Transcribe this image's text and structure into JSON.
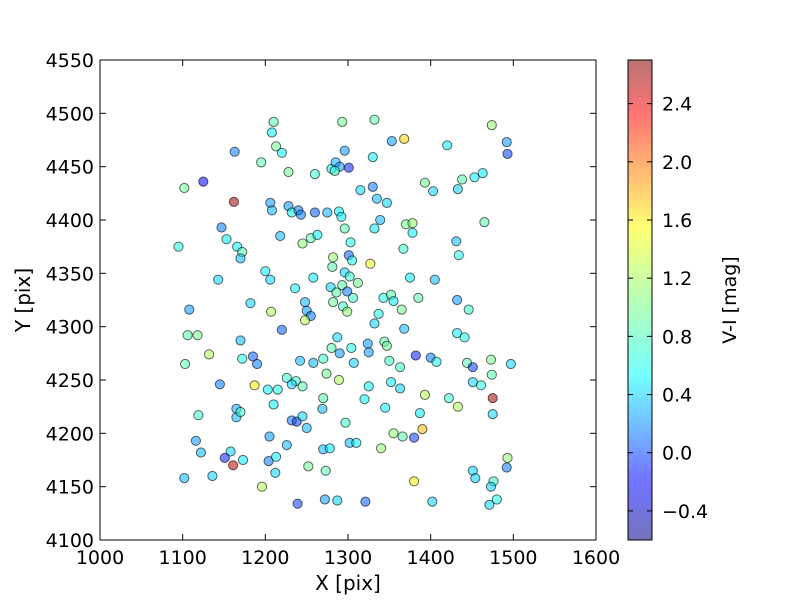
{
  "chart_data": {
    "type": "scatter",
    "xlabel": "X [pix]",
    "ylabel": "Y [pix]",
    "xlim": [
      1000,
      1600
    ],
    "ylim": [
      4100,
      4550
    ],
    "xticks": [
      "1000",
      "1100",
      "1200",
      "1300",
      "1400",
      "1500",
      "1600"
    ],
    "yticks": [
      "4100",
      "4150",
      "4200",
      "4250",
      "4300",
      "4350",
      "4400",
      "4450",
      "4500",
      "4550"
    ],
    "grid": false,
    "colorbar": {
      "label": "V-I [mag]",
      "range": [
        -0.6,
        2.7
      ],
      "ticks": [
        "−0.4",
        "0.0",
        "0.4",
        "0.8",
        "1.2",
        "1.6",
        "2.0",
        "2.4"
      ],
      "tick_values": [
        -0.4,
        0.0,
        0.4,
        0.8,
        1.2,
        1.6,
        2.0,
        2.4
      ],
      "colormap": "jet",
      "alpha": 0.55
    },
    "points": [
      {
        "x": 1210,
        "y": 4492,
        "c": 0.9
      },
      {
        "x": 1293,
        "y": 4492,
        "c": 1.0
      },
      {
        "x": 1332,
        "y": 4494,
        "c": 0.9
      },
      {
        "x": 1474,
        "y": 4489,
        "c": 1.1
      },
      {
        "x": 1208,
        "y": 4482,
        "c": 0.6
      },
      {
        "x": 1353,
        "y": 4474,
        "c": 0.3
      },
      {
        "x": 1368,
        "y": 4476,
        "c": 1.6
      },
      {
        "x": 1420,
        "y": 4470,
        "c": 0.6
      },
      {
        "x": 1492,
        "y": 4473,
        "c": 0.3
      },
      {
        "x": 1163,
        "y": 4464,
        "c": 0.2
      },
      {
        "x": 1213,
        "y": 4469,
        "c": 1.0
      },
      {
        "x": 1220,
        "y": 4463,
        "c": 0.6
      },
      {
        "x": 1296,
        "y": 4465,
        "c": 0.3
      },
      {
        "x": 1330,
        "y": 4459,
        "c": 0.6
      },
      {
        "x": 1493,
        "y": 4462,
        "c": 0.0
      },
      {
        "x": 1195,
        "y": 4454,
        "c": 0.9
      },
      {
        "x": 1228,
        "y": 4445,
        "c": 1.0
      },
      {
        "x": 1260,
        "y": 4443,
        "c": 0.8
      },
      {
        "x": 1280,
        "y": 4448,
        "c": 0.6
      },
      {
        "x": 1285,
        "y": 4454,
        "c": 0.4
      },
      {
        "x": 1290,
        "y": 4450,
        "c": 0.3
      },
      {
        "x": 1301,
        "y": 4449,
        "c": -0.1
      },
      {
        "x": 1284,
        "y": 4446,
        "c": 0.8
      },
      {
        "x": 1125,
        "y": 4436,
        "c": -0.2
      },
      {
        "x": 1102,
        "y": 4430,
        "c": 1.0
      },
      {
        "x": 1315,
        "y": 4428,
        "c": 0.5
      },
      {
        "x": 1330,
        "y": 4431,
        "c": 0.2
      },
      {
        "x": 1335,
        "y": 4420,
        "c": 0.4
      },
      {
        "x": 1347,
        "y": 4416,
        "c": 0.5
      },
      {
        "x": 1393,
        "y": 4435,
        "c": 1.0
      },
      {
        "x": 1403,
        "y": 4427,
        "c": 0.5
      },
      {
        "x": 1433,
        "y": 4429,
        "c": 0.5
      },
      {
        "x": 1438,
        "y": 4438,
        "c": 0.9
      },
      {
        "x": 1453,
        "y": 4440,
        "c": 0.6
      },
      {
        "x": 1463,
        "y": 4444,
        "c": 0.6
      },
      {
        "x": 1162,
        "y": 4417,
        "c": 2.6
      },
      {
        "x": 1206,
        "y": 4416,
        "c": 0.3
      },
      {
        "x": 1208,
        "y": 4409,
        "c": 0.4
      },
      {
        "x": 1228,
        "y": 4413,
        "c": 0.3
      },
      {
        "x": 1232,
        "y": 4407,
        "c": 0.7
      },
      {
        "x": 1240,
        "y": 4409,
        "c": 0.2
      },
      {
        "x": 1243,
        "y": 4405,
        "c": 0.2
      },
      {
        "x": 1260,
        "y": 4407,
        "c": 0.1
      },
      {
        "x": 1275,
        "y": 4407,
        "c": 0.4
      },
      {
        "x": 1289,
        "y": 4408,
        "c": 0.6
      },
      {
        "x": 1292,
        "y": 4403,
        "c": 0.6
      },
      {
        "x": 1339,
        "y": 4400,
        "c": 0.4
      },
      {
        "x": 1370,
        "y": 4396,
        "c": 1.0
      },
      {
        "x": 1378,
        "y": 4397,
        "c": 1.1
      },
      {
        "x": 1465,
        "y": 4398,
        "c": 0.9
      },
      {
        "x": 1095,
        "y": 4375,
        "c": 0.7
      },
      {
        "x": 1147,
        "y": 4393,
        "c": 0.2
      },
      {
        "x": 1153,
        "y": 4382,
        "c": 0.6
      },
      {
        "x": 1166,
        "y": 4375,
        "c": 0.6
      },
      {
        "x": 1172,
        "y": 4370,
        "c": 0.9
      },
      {
        "x": 1170,
        "y": 4364,
        "c": 0.4
      },
      {
        "x": 1218,
        "y": 4385,
        "c": 0.4
      },
      {
        "x": 1245,
        "y": 4378,
        "c": 1.1
      },
      {
        "x": 1255,
        "y": 4383,
        "c": 0.9
      },
      {
        "x": 1263,
        "y": 4386,
        "c": 0.6
      },
      {
        "x": 1296,
        "y": 4392,
        "c": 0.9
      },
      {
        "x": 1303,
        "y": 4379,
        "c": 0.7
      },
      {
        "x": 1332,
        "y": 4392,
        "c": 0.6
      },
      {
        "x": 1367,
        "y": 4373,
        "c": 0.8
      },
      {
        "x": 1378,
        "y": 4388,
        "c": 0.6
      },
      {
        "x": 1431,
        "y": 4380,
        "c": 0.4
      },
      {
        "x": 1434,
        "y": 4367,
        "c": 0.7
      },
      {
        "x": 1143,
        "y": 4344,
        "c": 0.5
      },
      {
        "x": 1200,
        "y": 4352,
        "c": 0.6
      },
      {
        "x": 1206,
        "y": 4344,
        "c": 0.5
      },
      {
        "x": 1236,
        "y": 4336,
        "c": 0.6
      },
      {
        "x": 1258,
        "y": 4346,
        "c": 0.6
      },
      {
        "x": 1282,
        "y": 4365,
        "c": 1.1
      },
      {
        "x": 1281,
        "y": 4356,
        "c": 0.9
      },
      {
        "x": 1301,
        "y": 4367,
        "c": 0.1
      },
      {
        "x": 1305,
        "y": 4362,
        "c": 0.7
      },
      {
        "x": 1296,
        "y": 4351,
        "c": 0.5
      },
      {
        "x": 1302,
        "y": 4347,
        "c": 0.8
      },
      {
        "x": 1327,
        "y": 4359,
        "c": 1.4
      },
      {
        "x": 1405,
        "y": 4344,
        "c": 0.4
      },
      {
        "x": 1375,
        "y": 4346,
        "c": 0.6
      },
      {
        "x": 1108,
        "y": 4316,
        "c": 0.3
      },
      {
        "x": 1182,
        "y": 4322,
        "c": 0.5
      },
      {
        "x": 1207,
        "y": 4314,
        "c": 1.2
      },
      {
        "x": 1248,
        "y": 4323,
        "c": 0.4
      },
      {
        "x": 1250,
        "y": 4315,
        "c": 0.3
      },
      {
        "x": 1255,
        "y": 4310,
        "c": 0.2
      },
      {
        "x": 1279,
        "y": 4337,
        "c": 0.5
      },
      {
        "x": 1286,
        "y": 4332,
        "c": 0.9
      },
      {
        "x": 1293,
        "y": 4339,
        "c": 0.9
      },
      {
        "x": 1299,
        "y": 4333,
        "c": 0.2
      },
      {
        "x": 1306,
        "y": 4327,
        "c": 0.8
      },
      {
        "x": 1282,
        "y": 4323,
        "c": 1.0
      },
      {
        "x": 1294,
        "y": 4319,
        "c": 0.8
      },
      {
        "x": 1299,
        "y": 4314,
        "c": 1.1
      },
      {
        "x": 1312,
        "y": 4341,
        "c": 1.0
      },
      {
        "x": 1343,
        "y": 4327,
        "c": 0.7
      },
      {
        "x": 1352,
        "y": 4330,
        "c": 0.9
      },
      {
        "x": 1355,
        "y": 4324,
        "c": 0.6
      },
      {
        "x": 1365,
        "y": 4316,
        "c": 1.0
      },
      {
        "x": 1337,
        "y": 4312,
        "c": 0.7
      },
      {
        "x": 1332,
        "y": 4303,
        "c": 0.5
      },
      {
        "x": 1385,
        "y": 4327,
        "c": 0.9
      },
      {
        "x": 1432,
        "y": 4325,
        "c": 0.3
      },
      {
        "x": 1446,
        "y": 4316,
        "c": 0.8
      },
      {
        "x": 1106,
        "y": 4292,
        "c": 0.9
      },
      {
        "x": 1118,
        "y": 4292,
        "c": 1.0
      },
      {
        "x": 1170,
        "y": 4287,
        "c": 0.4
      },
      {
        "x": 1220,
        "y": 4297,
        "c": 0.1
      },
      {
        "x": 1248,
        "y": 4306,
        "c": 1.2
      },
      {
        "x": 1287,
        "y": 4290,
        "c": 0.5
      },
      {
        "x": 1280,
        "y": 4280,
        "c": 0.9
      },
      {
        "x": 1344,
        "y": 4286,
        "c": 0.9
      },
      {
        "x": 1368,
        "y": 4298,
        "c": 0.4
      },
      {
        "x": 1347,
        "y": 4282,
        "c": 1.0
      },
      {
        "x": 1432,
        "y": 4294,
        "c": 0.6
      },
      {
        "x": 1441,
        "y": 4290,
        "c": 0.7
      },
      {
        "x": 1324,
        "y": 4284,
        "c": 0.3
      },
      {
        "x": 1103,
        "y": 4265,
        "c": 0.9
      },
      {
        "x": 1132,
        "y": 4274,
        "c": 1.2
      },
      {
        "x": 1172,
        "y": 4270,
        "c": 0.7
      },
      {
        "x": 1185,
        "y": 4272,
        "c": 0.1
      },
      {
        "x": 1190,
        "y": 4265,
        "c": 0.2
      },
      {
        "x": 1242,
        "y": 4268,
        "c": 0.4
      },
      {
        "x": 1258,
        "y": 4266,
        "c": 0.4
      },
      {
        "x": 1270,
        "y": 4270,
        "c": 0.8
      },
      {
        "x": 1290,
        "y": 4275,
        "c": 0.3
      },
      {
        "x": 1304,
        "y": 4280,
        "c": 0.7
      },
      {
        "x": 1307,
        "y": 4266,
        "c": 0.5
      },
      {
        "x": 1325,
        "y": 4276,
        "c": 0.3
      },
      {
        "x": 1350,
        "y": 4268,
        "c": 0.8
      },
      {
        "x": 1363,
        "y": 4262,
        "c": 0.8
      },
      {
        "x": 1382,
        "y": 4273,
        "c": -0.1
      },
      {
        "x": 1400,
        "y": 4271,
        "c": 0.2
      },
      {
        "x": 1407,
        "y": 4267,
        "c": 0.7
      },
      {
        "x": 1444,
        "y": 4266,
        "c": 0.9
      },
      {
        "x": 1451,
        "y": 4262,
        "c": 0.0
      },
      {
        "x": 1473,
        "y": 4269,
        "c": 1.0
      },
      {
        "x": 1497,
        "y": 4265,
        "c": 0.5
      },
      {
        "x": 1145,
        "y": 4246,
        "c": 0.2
      },
      {
        "x": 1187,
        "y": 4245,
        "c": 1.5
      },
      {
        "x": 1203,
        "y": 4241,
        "c": 0.6
      },
      {
        "x": 1215,
        "y": 4241,
        "c": 0.7
      },
      {
        "x": 1226,
        "y": 4252,
        "c": 0.8
      },
      {
        "x": 1237,
        "y": 4249,
        "c": 0.8
      },
      {
        "x": 1232,
        "y": 4246,
        "c": 0.5
      },
      {
        "x": 1245,
        "y": 4244,
        "c": 0.9
      },
      {
        "x": 1274,
        "y": 4256,
        "c": 1.0
      },
      {
        "x": 1270,
        "y": 4233,
        "c": 0.9
      },
      {
        "x": 1289,
        "y": 4250,
        "c": 1.2
      },
      {
        "x": 1325,
        "y": 4244,
        "c": 0.6
      },
      {
        "x": 1320,
        "y": 4232,
        "c": 0.6
      },
      {
        "x": 1352,
        "y": 4248,
        "c": 0.6
      },
      {
        "x": 1363,
        "y": 4242,
        "c": 0.5
      },
      {
        "x": 1393,
        "y": 4236,
        "c": 1.2
      },
      {
        "x": 1451,
        "y": 4248,
        "c": 0.5
      },
      {
        "x": 1461,
        "y": 4245,
        "c": 0.7
      },
      {
        "x": 1474,
        "y": 4255,
        "c": 0.9
      },
      {
        "x": 1165,
        "y": 4223,
        "c": 0.4
      },
      {
        "x": 1165,
        "y": 4215,
        "c": 0.4
      },
      {
        "x": 1170,
        "y": 4220,
        "c": 0.8
      },
      {
        "x": 1119,
        "y": 4217,
        "c": 0.8
      },
      {
        "x": 1210,
        "y": 4227,
        "c": 0.6
      },
      {
        "x": 1232,
        "y": 4212,
        "c": 0.2
      },
      {
        "x": 1238,
        "y": 4211,
        "c": 0.0
      },
      {
        "x": 1245,
        "y": 4216,
        "c": 0.5
      },
      {
        "x": 1250,
        "y": 4205,
        "c": 0.4
      },
      {
        "x": 1269,
        "y": 4223,
        "c": 0.4
      },
      {
        "x": 1297,
        "y": 4210,
        "c": 0.8
      },
      {
        "x": 1345,
        "y": 4224,
        "c": 0.6
      },
      {
        "x": 1387,
        "y": 4219,
        "c": 0.6
      },
      {
        "x": 1422,
        "y": 4233,
        "c": 0.8
      },
      {
        "x": 1433,
        "y": 4225,
        "c": 1.2
      },
      {
        "x": 1475,
        "y": 4233,
        "c": 2.6
      },
      {
        "x": 1475,
        "y": 4218,
        "c": 0.5
      },
      {
        "x": 1116,
        "y": 4193,
        "c": 0.3
      },
      {
        "x": 1122,
        "y": 4182,
        "c": 0.4
      },
      {
        "x": 1158,
        "y": 4183,
        "c": 0.5
      },
      {
        "x": 1173,
        "y": 4175,
        "c": 0.6
      },
      {
        "x": 1205,
        "y": 4197,
        "c": 0.3
      },
      {
        "x": 1226,
        "y": 4189,
        "c": 0.4
      },
      {
        "x": 1270,
        "y": 4185,
        "c": 0.4
      },
      {
        "x": 1278,
        "y": 4186,
        "c": 0.6
      },
      {
        "x": 1302,
        "y": 4191,
        "c": 0.4
      },
      {
        "x": 1310,
        "y": 4191,
        "c": 0.6
      },
      {
        "x": 1340,
        "y": 4186,
        "c": 1.1
      },
      {
        "x": 1355,
        "y": 4200,
        "c": 1.1
      },
      {
        "x": 1366,
        "y": 4197,
        "c": 0.9
      },
      {
        "x": 1380,
        "y": 4196,
        "c": 0.0
      },
      {
        "x": 1390,
        "y": 4204,
        "c": 1.7
      },
      {
        "x": 1151,
        "y": 4177,
        "c": -0.1
      },
      {
        "x": 1161,
        "y": 4170,
        "c": 2.5
      },
      {
        "x": 1204,
        "y": 4174,
        "c": 0.2
      },
      {
        "x": 1213,
        "y": 4178,
        "c": 0.6
      },
      {
        "x": 1212,
        "y": 4163,
        "c": 0.5
      },
      {
        "x": 1252,
        "y": 4169,
        "c": 1.0
      },
      {
        "x": 1273,
        "y": 4165,
        "c": 0.9
      },
      {
        "x": 1380,
        "y": 4155,
        "c": 1.5
      },
      {
        "x": 1451,
        "y": 4165,
        "c": 0.5
      },
      {
        "x": 1454,
        "y": 4158,
        "c": 0.5
      },
      {
        "x": 1476,
        "y": 4155,
        "c": 0.8
      },
      {
        "x": 1473,
        "y": 4150,
        "c": 0.5
      },
      {
        "x": 1492,
        "y": 4168,
        "c": 0.2
      },
      {
        "x": 1493,
        "y": 4177,
        "c": 1.1
      },
      {
        "x": 1102,
        "y": 4158,
        "c": 0.4
      },
      {
        "x": 1136,
        "y": 4160,
        "c": 0.5
      },
      {
        "x": 1196,
        "y": 4150,
        "c": 1.2
      },
      {
        "x": 1239,
        "y": 4134,
        "c": 0.0
      },
      {
        "x": 1272,
        "y": 4138,
        "c": 0.3
      },
      {
        "x": 1287,
        "y": 4137,
        "c": 0.5
      },
      {
        "x": 1321,
        "y": 4136,
        "c": 0.1
      },
      {
        "x": 1402,
        "y": 4136,
        "c": 0.5
      },
      {
        "x": 1471,
        "y": 4133,
        "c": 0.5
      },
      {
        "x": 1480,
        "y": 4138,
        "c": 0.7
      }
    ]
  }
}
